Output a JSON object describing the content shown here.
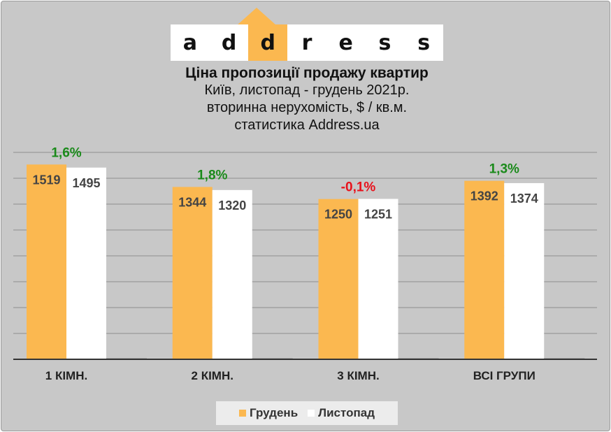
{
  "logo": {
    "letters": [
      "a",
      "d",
      "d",
      "r",
      "e",
      "s",
      "s"
    ],
    "accent_index": 2,
    "accent_color": "#fbb850"
  },
  "titles": {
    "title": "Ціна пропозиції продажу квартир",
    "subtitle1": "Київ, листопад - грудень 2021р.",
    "subtitle2": "вторинна нерухомість, $ / кв.м.",
    "subtitle3": "статистика Address.ua"
  },
  "chart_data": {
    "type": "bar",
    "categories": [
      "1 КІМН.",
      "2 КІМН.",
      "3 КІМН.",
      "ВСІ ГРУПИ"
    ],
    "series": [
      {
        "name": "Грудень",
        "values": [
          1519,
          1344,
          1250,
          1392
        ],
        "color": "#fbb850"
      },
      {
        "name": "Листопад",
        "values": [
          1495,
          1320,
          1251,
          1374
        ],
        "color": "#ffffff"
      }
    ],
    "changes": [
      "1,6%",
      "1,8%",
      "-0,1%",
      "1,3%"
    ],
    "change_colors": [
      "#1a8a1a",
      "#1a8a1a",
      "#e8101a",
      "#1a8a1a"
    ],
    "ylim": [
      0,
      1570
    ],
    "grid": true,
    "legend_position": "bottom"
  }
}
